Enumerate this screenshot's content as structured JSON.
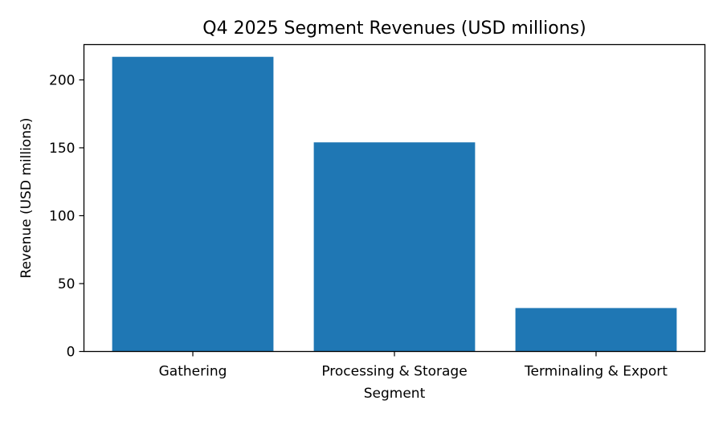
{
  "chart_data": {
    "type": "bar",
    "title": "Q4 2025 Segment Revenues (USD millions)",
    "xlabel": "Segment",
    "ylabel": "Revenue (USD millions)",
    "categories": [
      "Gathering",
      "Processing & Storage",
      "Terminaling & Export"
    ],
    "values": [
      217,
      154,
      32
    ],
    "ylim": [
      0,
      226
    ],
    "yticks": [
      0,
      50,
      100,
      150,
      200
    ],
    "ytick_labels": [
      "0",
      "50",
      "100",
      "150",
      "200"
    ],
    "grid": false,
    "bar_color": "#1f77b4"
  }
}
